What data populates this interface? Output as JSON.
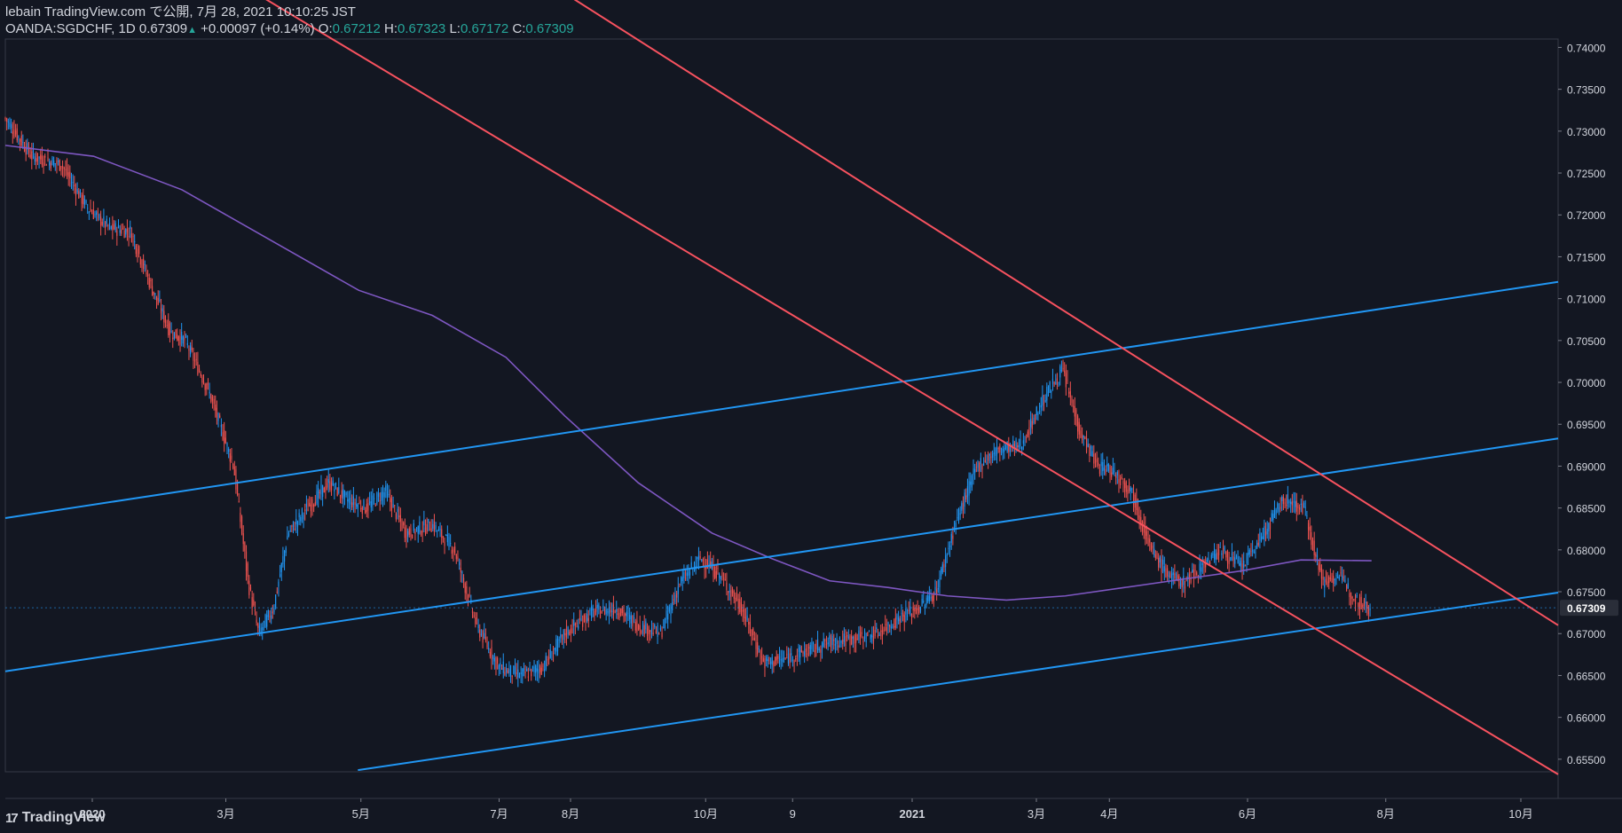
{
  "header": {
    "line1": "lebain TradingView.com で公開, 7月 28, 2021 10:10:25 JST",
    "symbol": "OANDA:SGDCHF, 1D",
    "last": "0.67309",
    "change": "+0.00097 (+0.14%)",
    "o_label": "O:",
    "o": "0.67212",
    "h_label": "H:",
    "h": "0.67323",
    "l_label": "L:",
    "l": "0.67172",
    "c_label": "C:",
    "c": "0.67309"
  },
  "footer": {
    "brand": "TradingView",
    "logo": "17"
  },
  "colors": {
    "background": "#131722",
    "up": "#2196f3",
    "down": "#ef5350",
    "ma": "#7e57c2",
    "channel_blue": "#2196f3",
    "channel_red": "#f7525f",
    "price_tag": "#2a2e39"
  },
  "chart_data": {
    "type": "candlestick",
    "symbol": "OANDA:SGDCHF",
    "interval": "1D",
    "ylim": [
      0.6535,
      0.741
    ],
    "y_ticks": [
      "0.74000",
      "0.73500",
      "0.73000",
      "0.72500",
      "0.72000",
      "0.71500",
      "0.71000",
      "0.70500",
      "0.70000",
      "0.69500",
      "0.69000",
      "0.68500",
      "0.68000",
      "0.67500",
      "0.67000",
      "0.66500",
      "0.66000",
      "0.65500"
    ],
    "x_ticks": [
      "2020",
      "3月",
      "5月",
      "7月",
      "8月",
      "10月",
      "9",
      "2021",
      "3月",
      "4月",
      "6月",
      "8月",
      "10月"
    ],
    "last_price_label": "0.67309",
    "price_path": [
      [
        0,
        0.7315
      ],
      [
        18,
        0.727
      ],
      [
        38,
        0.726
      ],
      [
        55,
        0.721
      ],
      [
        70,
        0.7185
      ],
      [
        85,
        0.718
      ],
      [
        100,
        0.711
      ],
      [
        112,
        0.706
      ],
      [
        122,
        0.705
      ],
      [
        138,
        0.699
      ],
      [
        155,
        0.69
      ],
      [
        165,
        0.676
      ],
      [
        172,
        0.67
      ],
      [
        182,
        0.673
      ],
      [
        192,
        0.682
      ],
      [
        205,
        0.685
      ],
      [
        220,
        0.688
      ],
      [
        232,
        0.686
      ],
      [
        245,
        0.685
      ],
      [
        258,
        0.687
      ],
      [
        272,
        0.682
      ],
      [
        290,
        0.683
      ],
      [
        305,
        0.68
      ],
      [
        320,
        0.671
      ],
      [
        335,
        0.666
      ],
      [
        350,
        0.665
      ],
      [
        365,
        0.666
      ],
      [
        380,
        0.67
      ],
      [
        398,
        0.6725
      ],
      [
        415,
        0.673
      ],
      [
        430,
        0.671
      ],
      [
        445,
        0.67
      ],
      [
        458,
        0.676
      ],
      [
        472,
        0.679
      ],
      [
        485,
        0.677
      ],
      [
        500,
        0.673
      ],
      [
        515,
        0.6665
      ],
      [
        530,
        0.667
      ],
      [
        545,
        0.668
      ],
      [
        560,
        0.669
      ],
      [
        578,
        0.6695
      ],
      [
        592,
        0.67
      ],
      [
        608,
        0.672
      ],
      [
        620,
        0.673
      ],
      [
        632,
        0.675
      ],
      [
        645,
        0.683
      ],
      [
        660,
        0.69
      ],
      [
        675,
        0.692
      ],
      [
        690,
        0.6925
      ],
      [
        705,
        0.698
      ],
      [
        718,
        0.7015
      ],
      [
        730,
        0.694
      ],
      [
        742,
        0.69
      ],
      [
        752,
        0.6895
      ],
      [
        765,
        0.687
      ],
      [
        778,
        0.68
      ],
      [
        790,
        0.677
      ],
      [
        800,
        0.676
      ],
      [
        812,
        0.678
      ],
      [
        825,
        0.68
      ],
      [
        840,
        0.678
      ],
      [
        855,
        0.682
      ],
      [
        868,
        0.686
      ],
      [
        882,
        0.685
      ],
      [
        895,
        0.676
      ],
      [
        905,
        0.677
      ],
      [
        918,
        0.674
      ],
      [
        928,
        0.673
      ]
    ],
    "ma_path": [
      [
        0,
        0.7283
      ],
      [
        60,
        0.727
      ],
      [
        120,
        0.723
      ],
      [
        180,
        0.717
      ],
      [
        240,
        0.711
      ],
      [
        290,
        0.708
      ],
      [
        340,
        0.703
      ],
      [
        380,
        0.696
      ],
      [
        430,
        0.688
      ],
      [
        480,
        0.682
      ],
      [
        520,
        0.679
      ],
      [
        560,
        0.6763
      ],
      [
        600,
        0.6755
      ],
      [
        640,
        0.6745
      ],
      [
        680,
        0.674
      ],
      [
        720,
        0.6745
      ],
      [
        760,
        0.6755
      ],
      [
        800,
        0.6765
      ],
      [
        840,
        0.6775
      ],
      [
        880,
        0.6788
      ],
      [
        928,
        0.6787
      ]
    ],
    "ma_start_index": 0,
    "candle_count": 930,
    "lines": [
      {
        "color": "blue",
        "p1": [
          0,
          0.6838
        ],
        "p2": [
          1057,
          0.712
        ]
      },
      {
        "color": "blue",
        "p1": [
          0,
          0.6655
        ],
        "p2": [
          1057,
          0.6933
        ]
      },
      {
        "color": "blue",
        "p1": [
          240,
          0.6537
        ],
        "p2": [
          1057,
          0.6749
        ]
      },
      {
        "color": "red",
        "p1": [
          175,
          0.746
        ],
        "p2": [
          1057,
          0.6532
        ]
      },
      {
        "color": "red",
        "p1": [
          385,
          0.746
        ],
        "p2": [
          1057,
          0.671
        ]
      }
    ]
  }
}
